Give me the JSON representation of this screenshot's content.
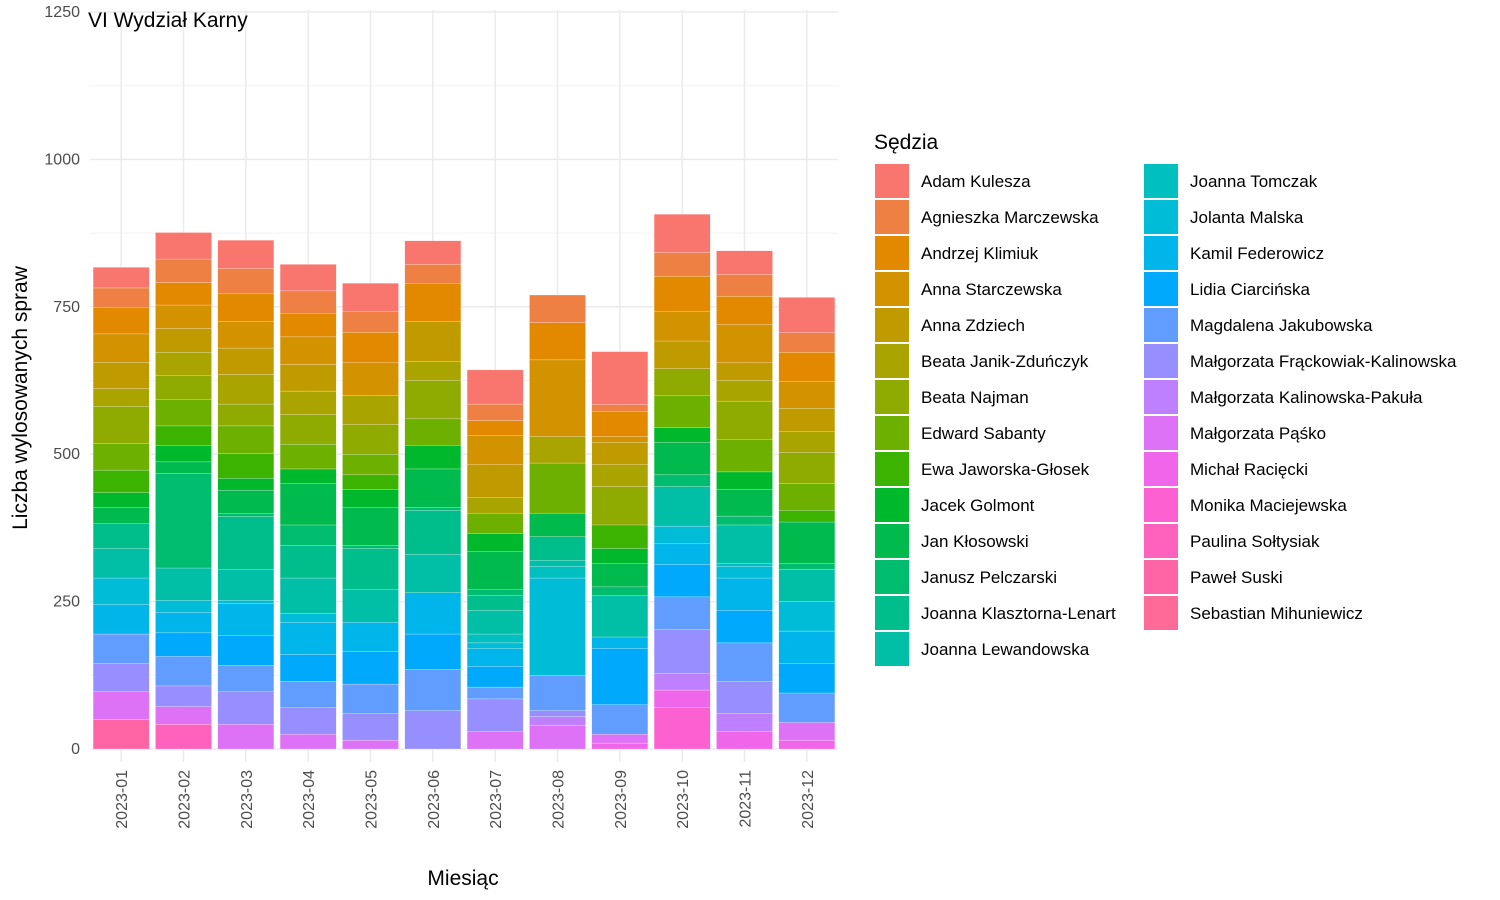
{
  "chart_data": {
    "type": "bar",
    "stacked": true,
    "title": "VI Wydział Karny",
    "xlabel": "Miesiąc",
    "ylabel": "Liczba wylosowanych spraw",
    "ylim": [
      0,
      1250
    ],
    "yticks": [
      0,
      250,
      500,
      750,
      1000,
      1250
    ],
    "grid": true,
    "legend_position": "right",
    "legend_title": "Sędzia",
    "categories": [
      "2023-01",
      "2023-02",
      "2023-03",
      "2023-04",
      "2023-05",
      "2023-06",
      "2023-07",
      "2023-08",
      "2023-09",
      "2023-10",
      "2023-11",
      "2023-12"
    ],
    "series": [
      {
        "name": "Adam Kulesza",
        "color": "#F8766D",
        "values": [
          35,
          45,
          48,
          45,
          48,
          40,
          58,
          0,
          90,
          65,
          40,
          60
        ]
      },
      {
        "name": "Agnieszka Marczewska",
        "color": "#EE8044",
        "values": [
          33,
          40,
          43,
          38,
          35,
          32,
          28,
          47,
          12,
          40,
          37,
          33
        ]
      },
      {
        "name": "Andrzej Klimiuk",
        "color": "#E38900",
        "values": [
          45,
          38,
          47,
          40,
          52,
          65,
          25,
          63,
          42,
          60,
          48,
          50
        ]
      },
      {
        "name": "Anna Starczewska",
        "color": "#D39200",
        "values": [
          48,
          40,
          45,
          47,
          55,
          0,
          50,
          130,
          10,
          50,
          65,
          45
        ]
      },
      {
        "name": "Anna Zdziech",
        "color": "#C09B00",
        "values": [
          45,
          40,
          45,
          45,
          0,
          68,
          55,
          0,
          38,
          47,
          30,
          40
        ]
      },
      {
        "name": "Beata Janik-Zduńczyk",
        "color": "#A9A400",
        "values": [
          30,
          40,
          50,
          40,
          50,
          32,
          27,
          45,
          37,
          0,
          35,
          35
        ]
      },
      {
        "name": "Beata Najman",
        "color": "#8FAA00",
        "values": [
          63,
          40,
          37,
          50,
          50,
          65,
          0,
          0,
          65,
          45,
          65,
          53
        ]
      },
      {
        "name": "Edward Sabanty",
        "color": "#6DB000",
        "values": [
          45,
          45,
          47,
          42,
          35,
          45,
          35,
          85,
          0,
          55,
          55,
          45
        ]
      },
      {
        "name": "Ewa Jaworska-Głosek",
        "color": "#3BB300",
        "values": [
          38,
          33,
          42,
          0,
          25,
          0,
          0,
          0,
          40,
          0,
          0,
          20
        ]
      },
      {
        "name": "Jacek Golmont",
        "color": "#00B82B",
        "values": [
          25,
          28,
          20,
          25,
          30,
          40,
          30,
          0,
          25,
          25,
          30,
          0
        ]
      },
      {
        "name": "Jan Kłosowski",
        "color": "#00BA4E",
        "values": [
          28,
          20,
          40,
          70,
          65,
          65,
          65,
          40,
          40,
          55,
          45,
          70
        ]
      },
      {
        "name": "Janusz Pelczarski",
        "color": "#00BC6E",
        "values": [
          0,
          160,
          5,
          35,
          5,
          5,
          10,
          0,
          15,
          20,
          15,
          10
        ]
      },
      {
        "name": "Joanna Klasztorna-Lenart",
        "color": "#00BE8B",
        "values": [
          42,
          0,
          90,
          55,
          70,
          75,
          25,
          40,
          0,
          0,
          0,
          0
        ]
      },
      {
        "name": "Joanna Lewandowska",
        "color": "#00BFA6",
        "values": [
          50,
          55,
          52,
          60,
          55,
          65,
          40,
          10,
          70,
          67,
          65,
          55
        ]
      },
      {
        "name": "Joanna Tomczak",
        "color": "#00BFBF",
        "values": [
          0,
          0,
          0,
          0,
          0,
          0,
          15,
          20,
          0,
          0,
          5,
          0
        ]
      },
      {
        "name": "Jolanta Malska",
        "color": "#00BCD6",
        "values": [
          45,
          20,
          5,
          15,
          0,
          0,
          10,
          165,
          0,
          30,
          20,
          50
        ]
      },
      {
        "name": "Kamil Federowicz",
        "color": "#00B5EA",
        "values": [
          50,
          35,
          55,
          55,
          50,
          70,
          30,
          0,
          20,
          35,
          55,
          55
        ]
      },
      {
        "name": "Lidia Ciarcińska",
        "color": "#00A9FC",
        "values": [
          0,
          40,
          50,
          45,
          55,
          60,
          35,
          0,
          95,
          55,
          55,
          50
        ]
      },
      {
        "name": "Magdalena Jakubowska",
        "color": "#619CFF",
        "values": [
          50,
          50,
          45,
          45,
          50,
          70,
          20,
          60,
          50,
          55,
          65,
          50
        ]
      },
      {
        "name": "Małgorzata Frąckowiak-Kalinowska",
        "color": "#978FFF",
        "values": [
          48,
          35,
          55,
          45,
          45,
          65,
          55,
          10,
          0,
          75,
          55,
          0
        ]
      },
      {
        "name": "Małgorzata Kalinowska-Pakuła",
        "color": "#BF80FF",
        "values": [
          0,
          0,
          0,
          0,
          0,
          0,
          0,
          15,
          0,
          28,
          30,
          0
        ]
      },
      {
        "name": "Małgorzata Pąśko",
        "color": "#DE72F7",
        "values": [
          47,
          30,
          42,
          25,
          15,
          0,
          30,
          40,
          15,
          0,
          0,
          30
        ]
      },
      {
        "name": "Michał Racięcki",
        "color": "#F066EA",
        "values": [
          0,
          0,
          0,
          0,
          0,
          0,
          0,
          0,
          10,
          30,
          30,
          15
        ]
      },
      {
        "name": "Monika Maciejewska",
        "color": "#FD61D1",
        "values": [
          0,
          0,
          0,
          0,
          0,
          0,
          0,
          0,
          0,
          70,
          0,
          0
        ]
      },
      {
        "name": "Paulina Sołtysiak",
        "color": "#FF62BC",
        "values": [
          0,
          42,
          0,
          0,
          0,
          0,
          0,
          0,
          0,
          0,
          0,
          0
        ]
      },
      {
        "name": "Paweł Suski",
        "color": "#FF65A5",
        "values": [
          50,
          0,
          0,
          0,
          0,
          0,
          0,
          0,
          0,
          0,
          0,
          0
        ]
      },
      {
        "name": "Sebastian Mihuniewicz",
        "color": "#FF6A98",
        "values": [
          0,
          0,
          0,
          0,
          0,
          0,
          0,
          0,
          0,
          0,
          0,
          0
        ]
      }
    ]
  }
}
